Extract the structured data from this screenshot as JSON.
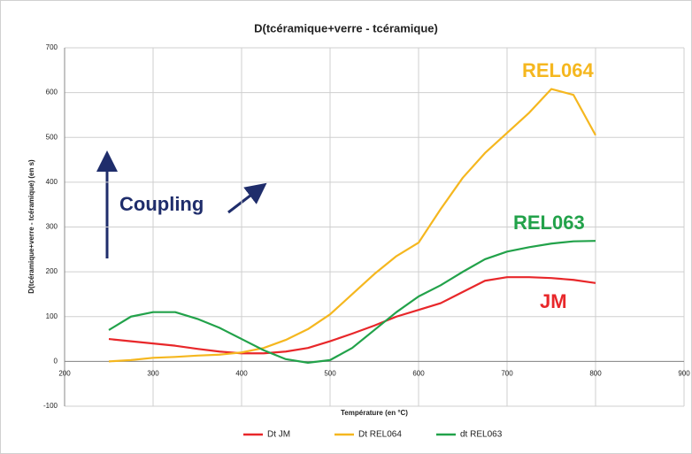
{
  "chart_data": {
    "type": "line",
    "title": "D(tcéramique+verre - tcéramique)",
    "xlabel": "Température (en °C)",
    "ylabel": "D(tcéramique+verre - tcéramique) (en s)",
    "x": [
      250,
      275,
      300,
      325,
      350,
      375,
      400,
      425,
      450,
      475,
      500,
      525,
      550,
      575,
      600,
      625,
      650,
      675,
      700,
      725,
      750,
      775,
      800
    ],
    "series": [
      {
        "name": "Dt JM",
        "color": "#e8272a",
        "values": [
          50,
          45,
          40,
          35,
          28,
          22,
          18,
          18,
          22,
          30,
          45,
          62,
          80,
          100,
          115,
          130,
          155,
          180,
          188,
          188,
          186,
          182,
          175
        ]
      },
      {
        "name": "Dt REL064",
        "color": "#f5b71f",
        "values": [
          0,
          3,
          8,
          10,
          13,
          15,
          20,
          30,
          48,
          72,
          105,
          150,
          195,
          235,
          265,
          340,
          410,
          465,
          510,
          555,
          608,
          595,
          505
        ]
      },
      {
        "name": "dt REL063",
        "color": "#22a24a",
        "values": [
          70,
          100,
          110,
          110,
          95,
          75,
          50,
          25,
          5,
          -3,
          3,
          30,
          70,
          110,
          145,
          170,
          200,
          228,
          245,
          255,
          263,
          268,
          269
        ]
      }
    ],
    "xlim": [
      200,
      900
    ],
    "xticks": [
      200,
      300,
      400,
      500,
      600,
      700,
      800,
      900
    ],
    "ylim": [
      -100,
      700
    ],
    "yticks": [
      -100,
      0,
      100,
      200,
      300,
      400,
      500,
      600,
      700
    ],
    "grid": true,
    "legend": "bottom",
    "annotations": [
      {
        "text": "REL064",
        "color": "#f5b71f"
      },
      {
        "text": "REL063",
        "color": "#22a24a"
      },
      {
        "text": "JM",
        "color": "#e8272a"
      },
      {
        "text": "Coupling",
        "color": "#1f2d6b"
      }
    ]
  }
}
